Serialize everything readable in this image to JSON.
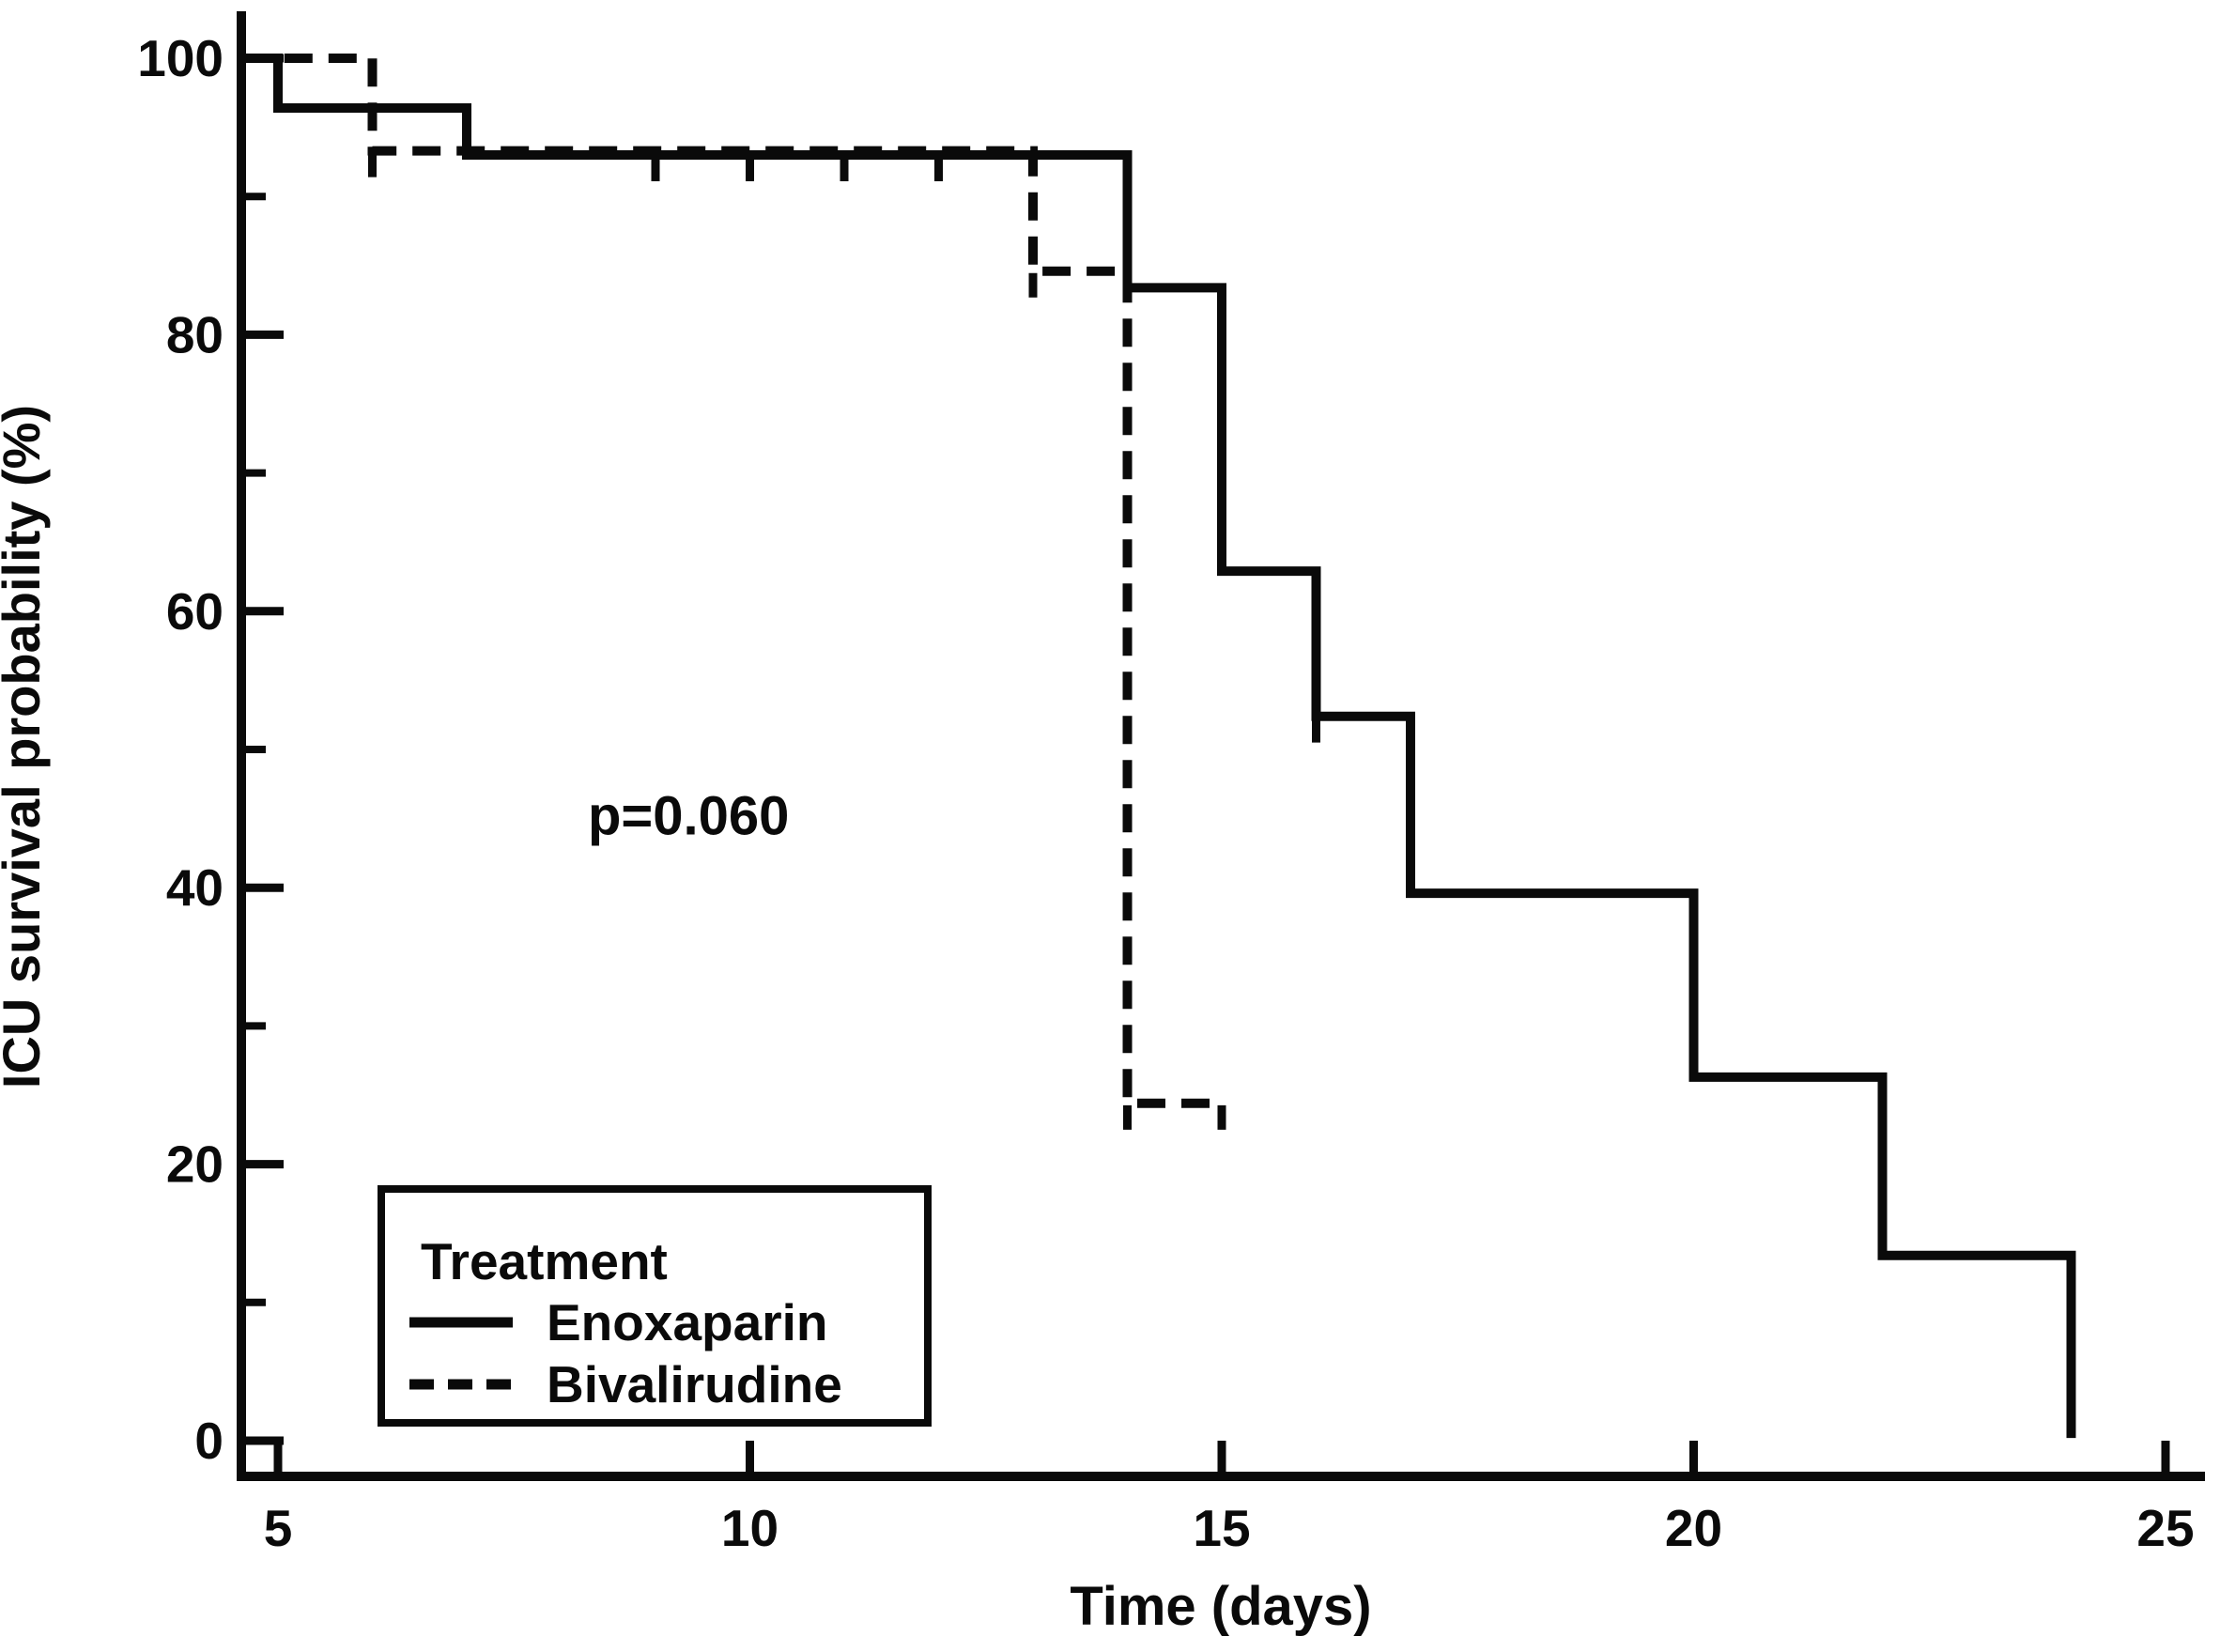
{
  "figure": {
    "background": "#ffffff",
    "ink_color": "#0a0a0a"
  },
  "chart_data": {
    "type": "line",
    "subtype": "kaplan-meier-step",
    "title": "",
    "xlabel": "Time (days)",
    "ylabel": "ICU survival probability (%)",
    "xlim": [
      4.6,
      25.5
    ],
    "ylim": [
      0,
      100
    ],
    "x_ticks": [
      5,
      10,
      15,
      20,
      25
    ],
    "y_ticks": [
      0,
      20,
      40,
      60,
      80,
      100
    ],
    "y_minor_ticks": [
      10,
      30,
      50,
      70,
      90
    ],
    "grid": "off",
    "frame": "L-shaped (left and bottom axes only)",
    "annotation": "p=0.060",
    "annotation_pos": {
      "x_day": 9.35,
      "y_percent": 45.2
    },
    "legend": {
      "position": "lower-left",
      "title": "Treatment",
      "entries": [
        {
          "label": "Enoxaparin",
          "style": "solid"
        },
        {
          "label": "Bivalirudine",
          "style": "dashed"
        }
      ]
    },
    "series": [
      {
        "name": "Bivalirudine",
        "style": "dashed",
        "points": [
          [
            4.6,
            100
          ],
          [
            6,
            100
          ],
          [
            6,
            93.3
          ],
          [
            13,
            93.3
          ],
          [
            13,
            84.6
          ],
          [
            14,
            84.6
          ],
          [
            14,
            24.4
          ],
          [
            15,
            24.4
          ]
        ],
        "censor_marks": [
          [
            6,
            93.3
          ],
          [
            13,
            84.6
          ],
          [
            14,
            24.4
          ],
          [
            15,
            24.4
          ]
        ]
      },
      {
        "name": "Enoxaparin",
        "style": "solid",
        "points": [
          [
            4.6,
            100
          ],
          [
            5,
            100
          ],
          [
            5,
            96.4
          ],
          [
            7,
            96.4
          ],
          [
            7,
            93.0
          ],
          [
            14,
            93.0
          ],
          [
            14,
            83.4
          ],
          [
            15,
            83.4
          ],
          [
            15,
            62.9
          ],
          [
            16,
            62.9
          ],
          [
            16,
            52.4
          ],
          [
            17,
            52.4
          ],
          [
            17,
            39.6
          ],
          [
            20,
            39.6
          ],
          [
            20,
            26.3
          ],
          [
            22,
            26.3
          ],
          [
            22,
            13.4
          ],
          [
            24,
            13.4
          ],
          [
            24,
            0.2
          ]
        ],
        "censor_marks": [
          [
            9,
            93.0
          ],
          [
            10,
            93.0
          ],
          [
            11,
            93.0
          ],
          [
            12,
            93.0
          ],
          [
            16,
            52.4
          ]
        ]
      }
    ]
  }
}
